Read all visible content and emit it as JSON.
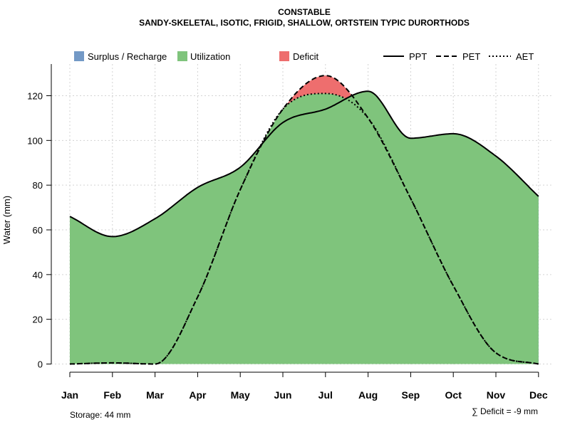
{
  "chart_data": {
    "type": "area",
    "title": "CONSTABLE",
    "subtitle": "SANDY-SKELETAL, ISOTIC, FRIGID, SHALLOW, ORTSTEIN TYPIC DURORTHODS",
    "xlabel": "",
    "ylabel": "Water (mm)",
    "ylim": [
      0,
      130
    ],
    "yticks": [
      0,
      20,
      40,
      60,
      80,
      100,
      120
    ],
    "categories": [
      "Jan",
      "Feb",
      "Mar",
      "Apr",
      "May",
      "Jun",
      "Jul",
      "Aug",
      "Sep",
      "Oct",
      "Nov",
      "Dec"
    ],
    "grid": true,
    "series": [
      {
        "name": "PPT",
        "style": "solid",
        "values": [
          66,
          57,
          65,
          79,
          88,
          108,
          114,
          122,
          101,
          103,
          93,
          75
        ]
      },
      {
        "name": "PET",
        "style": "dashed",
        "values": [
          0,
          0.5,
          0,
          30,
          78,
          114,
          129,
          110,
          74,
          35,
          5,
          0
        ]
      },
      {
        "name": "AET",
        "style": "dotted",
        "values": [
          0,
          0.5,
          0,
          30,
          78,
          114,
          121,
          110,
          74,
          35,
          5,
          0
        ]
      }
    ],
    "fills": [
      {
        "name": "Surplus / Recharge",
        "color": "#7399C6"
      },
      {
        "name": "Utilization",
        "color": "#7FC47C"
      },
      {
        "name": "Deficit",
        "color": "#EE6E6E"
      }
    ],
    "legend_position": "top",
    "annotations": {
      "storage": "Storage: 44 mm",
      "deficit": "∑ Deficit = -9 mm"
    }
  }
}
